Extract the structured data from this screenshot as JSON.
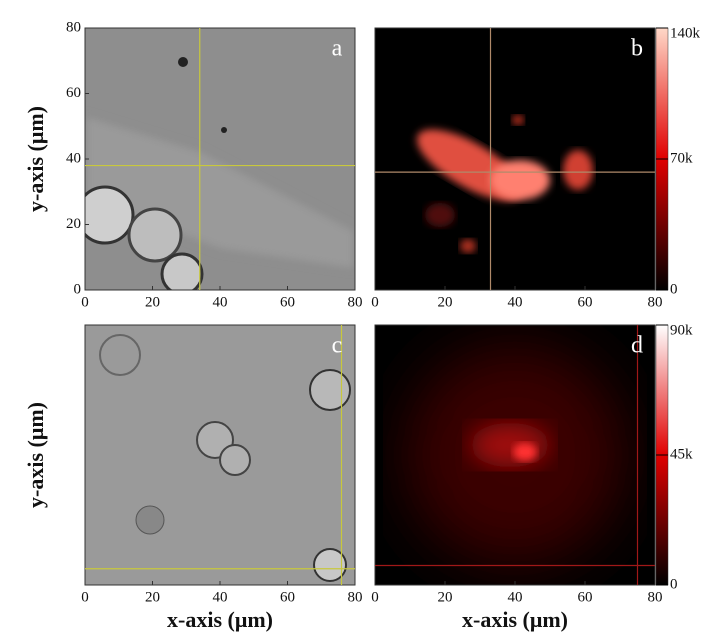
{
  "chart_data": [
    {
      "type": "image",
      "panel_label": "a",
      "ylabel": "y-axis (μm)",
      "xlim": [
        0,
        80
      ],
      "ylim": [
        0,
        80
      ],
      "xticks": [
        0,
        20,
        40,
        60,
        80
      ],
      "yticks": [
        0,
        20,
        40,
        60,
        80
      ],
      "crosshair": {
        "x": 34,
        "y": 38,
        "color": "#c8c83c"
      }
    },
    {
      "type": "image",
      "panel_label": "b",
      "xlim": [
        0,
        80
      ],
      "ylim": [
        0,
        80
      ],
      "xticks": [
        0,
        20,
        40,
        60,
        80
      ],
      "crosshair": {
        "x": 33,
        "y": 36,
        "color": "#b08a6a"
      },
      "colorbar": {
        "lim": [
          0,
          140000
        ],
        "ticks": [
          0,
          {
            "value": 70000,
            "label": "70k"
          },
          {
            "value": 140000,
            "label": "140k"
          }
        ],
        "colors": [
          "#000000",
          "#e00000",
          "#ffd8c8"
        ]
      }
    },
    {
      "type": "image",
      "panel_label": "c",
      "ylabel": "y-axis (μm)",
      "xlabel": "x-axis (μm)",
      "xlim": [
        0,
        80
      ],
      "ylim": [
        0,
        80
      ],
      "xticks": [
        0,
        20,
        40,
        60,
        80
      ],
      "crosshair": {
        "x": 76,
        "y": 5,
        "color": "#c8c83c"
      }
    },
    {
      "type": "image",
      "panel_label": "d",
      "xlabel": "x-axis (μm)",
      "xlim": [
        0,
        80
      ],
      "ylim": [
        0,
        80
      ],
      "xticks": [
        0,
        20,
        40,
        60,
        80
      ],
      "crosshair": {
        "x": 75,
        "y": 6,
        "color": "#a01818"
      },
      "colorbar": {
        "lim": [
          0,
          90000
        ],
        "ticks": [
          0,
          {
            "value": 45000,
            "label": "45k"
          },
          {
            "value": 90000,
            "label": "90k"
          }
        ],
        "colors": [
          "#000000",
          "#e00000",
          "#ffffff"
        ]
      }
    }
  ]
}
